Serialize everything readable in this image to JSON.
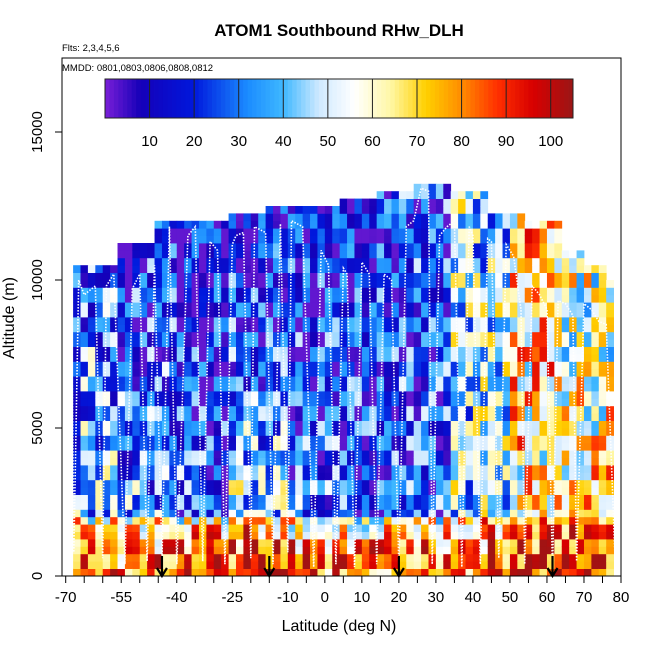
{
  "chart_data": {
    "type": "heatmap",
    "title": "ATOM1 Southbound RHw_DLH",
    "flights_label": "Flts: 2,3,4,5,6",
    "dates_label": "MMDD: 0801,0803,0806,0808,0812",
    "xlabel": "Latitude (deg N)",
    "ylabel": "Altitude (m)",
    "xlim": [
      -71,
      80
    ],
    "ylim": [
      0,
      17500
    ],
    "x_ticks": [
      -70,
      -55,
      -40,
      -25,
      -10,
      0,
      10,
      20,
      30,
      40,
      50,
      60,
      70,
      80
    ],
    "x_tick_labels": [
      "-70",
      "-55",
      "-40",
      "-25",
      "-10",
      "0",
      "10",
      "20",
      "30",
      "40",
      "50",
      "60",
      "70",
      "80"
    ],
    "x_minor_ticks": [
      -65,
      -60,
      -50,
      -45,
      -35,
      -30,
      -20,
      -15,
      -5,
      5,
      15,
      25,
      35,
      45,
      55,
      65,
      75
    ],
    "y_ticks": [
      0,
      5000,
      10000,
      15000
    ],
    "y_tick_labels": [
      "0",
      "5000",
      "10000",
      "15000"
    ],
    "colorbar": {
      "range": [
        0,
        105
      ],
      "ticks": [
        10,
        20,
        30,
        40,
        50,
        60,
        70,
        80,
        90,
        100
      ],
      "tick_labels": [
        "10",
        "20",
        "30",
        "40",
        "50",
        "60",
        "70",
        "80",
        "90",
        "100"
      ],
      "stops": [
        {
          "v": 0,
          "c": "#7a1fd8"
        },
        {
          "v": 8,
          "c": "#1500b8"
        },
        {
          "v": 20,
          "c": "#0018dd"
        },
        {
          "v": 32,
          "c": "#1b8cff"
        },
        {
          "v": 40,
          "c": "#3fb8ff"
        },
        {
          "v": 48,
          "c": "#cfe9ff"
        },
        {
          "v": 56,
          "c": "#ffffff"
        },
        {
          "v": 64,
          "c": "#fff7a6"
        },
        {
          "v": 72,
          "c": "#ffd000"
        },
        {
          "v": 80,
          "c": "#ff8c00"
        },
        {
          "v": 88,
          "c": "#ff3000"
        },
        {
          "v": 96,
          "c": "#d80000"
        },
        {
          "v": 105,
          "c": "#9b1515"
        }
      ]
    },
    "profile_coverage": {
      "lat_edges": [
        -68,
        -55,
        -45,
        -35,
        -25,
        -15,
        -5,
        5,
        15,
        25,
        35,
        45,
        55,
        65,
        70,
        77,
        79
      ],
      "top_alt_m": [
        10500,
        11200,
        11800,
        12000,
        12200,
        12400,
        12400,
        12600,
        13000,
        13200,
        12800,
        12200,
        11800,
        11000,
        10500,
        10000
      ]
    },
    "rh_profile_by_region": [
      {
        "lat_range": [
          -68,
          -55
        ],
        "rh_low": 82,
        "rh_mid": 40,
        "rh_high": 30
      },
      {
        "lat_range": [
          -55,
          -40
        ],
        "rh_low": 82,
        "rh_mid": 35,
        "rh_high": 20
      },
      {
        "lat_range": [
          -40,
          -25
        ],
        "rh_low": 84,
        "rh_mid": 30,
        "rh_high": 8
      },
      {
        "lat_range": [
          -25,
          -10
        ],
        "rh_low": 88,
        "rh_mid": 45,
        "rh_high": 12
      },
      {
        "lat_range": [
          -10,
          5
        ],
        "rh_low": 84,
        "rh_mid": 30,
        "rh_high": 15
      },
      {
        "lat_range": [
          5,
          20
        ],
        "rh_low": 82,
        "rh_mid": 25,
        "rh_high": 18
      },
      {
        "lat_range": [
          20,
          35
        ],
        "rh_low": 82,
        "rh_mid": 25,
        "rh_high": 25
      },
      {
        "lat_range": [
          35,
          50
        ],
        "rh_low": 86,
        "rh_mid": 45,
        "rh_high": 45
      },
      {
        "lat_range": [
          50,
          65
        ],
        "rh_low": 92,
        "rh_mid": 65,
        "rh_high": 70
      },
      {
        "lat_range": [
          65,
          79
        ],
        "rh_low": 90,
        "rh_mid": 70,
        "rh_high": 55
      }
    ],
    "flight_track": [
      [
        -68.5,
        10200
      ],
      [
        -67.8,
        800
      ],
      [
        -66.5,
        10000
      ],
      [
        -65,
        9500
      ],
      [
        -62,
        9800
      ],
      [
        -60,
        600
      ],
      [
        -59,
        9800
      ],
      [
        -57,
        10200
      ],
      [
        -54,
        400
      ],
      [
        -52,
        9700
      ],
      [
        -50,
        10200
      ],
      [
        -48,
        500
      ],
      [
        -46,
        10500
      ],
      [
        -44,
        600
      ],
      [
        -42,
        11800
      ],
      [
        -40,
        400
      ],
      [
        -37,
        11500
      ],
      [
        -35,
        11800
      ],
      [
        -33,
        500
      ],
      [
        -31,
        11300
      ],
      [
        -29,
        11000
      ],
      [
        -27,
        400
      ],
      [
        -25,
        11200
      ],
      [
        -24,
        11500
      ],
      [
        -22,
        11600
      ],
      [
        -20,
        600
      ],
      [
        -19,
        11800
      ],
      [
        -16,
        11600
      ],
      [
        -14,
        400
      ],
      [
        -12,
        11900
      ],
      [
        -10,
        800
      ],
      [
        -9,
        12000
      ],
      [
        -6,
        11800
      ],
      [
        -3,
        300
      ],
      [
        -1,
        11000
      ],
      [
        1,
        10500
      ],
      [
        3,
        400
      ],
      [
        5,
        10400
      ],
      [
        6,
        10200
      ],
      [
        8,
        300
      ],
      [
        10,
        10600
      ],
      [
        12,
        10200
      ],
      [
        14,
        400
      ],
      [
        16,
        10200
      ],
      [
        18,
        10000
      ],
      [
        20,
        300
      ],
      [
        22,
        11800
      ],
      [
        24,
        12000
      ],
      [
        26,
        13100
      ],
      [
        28,
        13000
      ],
      [
        29,
        400
      ],
      [
        31,
        11500
      ],
      [
        33,
        11800
      ],
      [
        35,
        12000
      ],
      [
        37,
        300
      ],
      [
        39,
        11800
      ],
      [
        40,
        11500
      ],
      [
        42,
        400
      ],
      [
        44,
        11400
      ],
      [
        45,
        11300
      ],
      [
        47,
        600
      ],
      [
        49,
        11200
      ],
      [
        51,
        10800
      ],
      [
        53,
        9000
      ],
      [
        54,
        400
      ],
      [
        56,
        9800
      ],
      [
        58,
        9500
      ],
      [
        60,
        9000
      ],
      [
        61.5,
        200
      ],
      [
        63,
        9300
      ],
      [
        65,
        9200
      ],
      [
        67,
        8800
      ],
      [
        68,
        500
      ],
      [
        70,
        9200
      ],
      [
        72,
        9000
      ],
      [
        74,
        8600
      ],
      [
        76,
        8500
      ],
      [
        78.5,
        300
      ]
    ],
    "arrow_markers_lat": [
      -44,
      -15,
      20,
      61.5
    ]
  }
}
